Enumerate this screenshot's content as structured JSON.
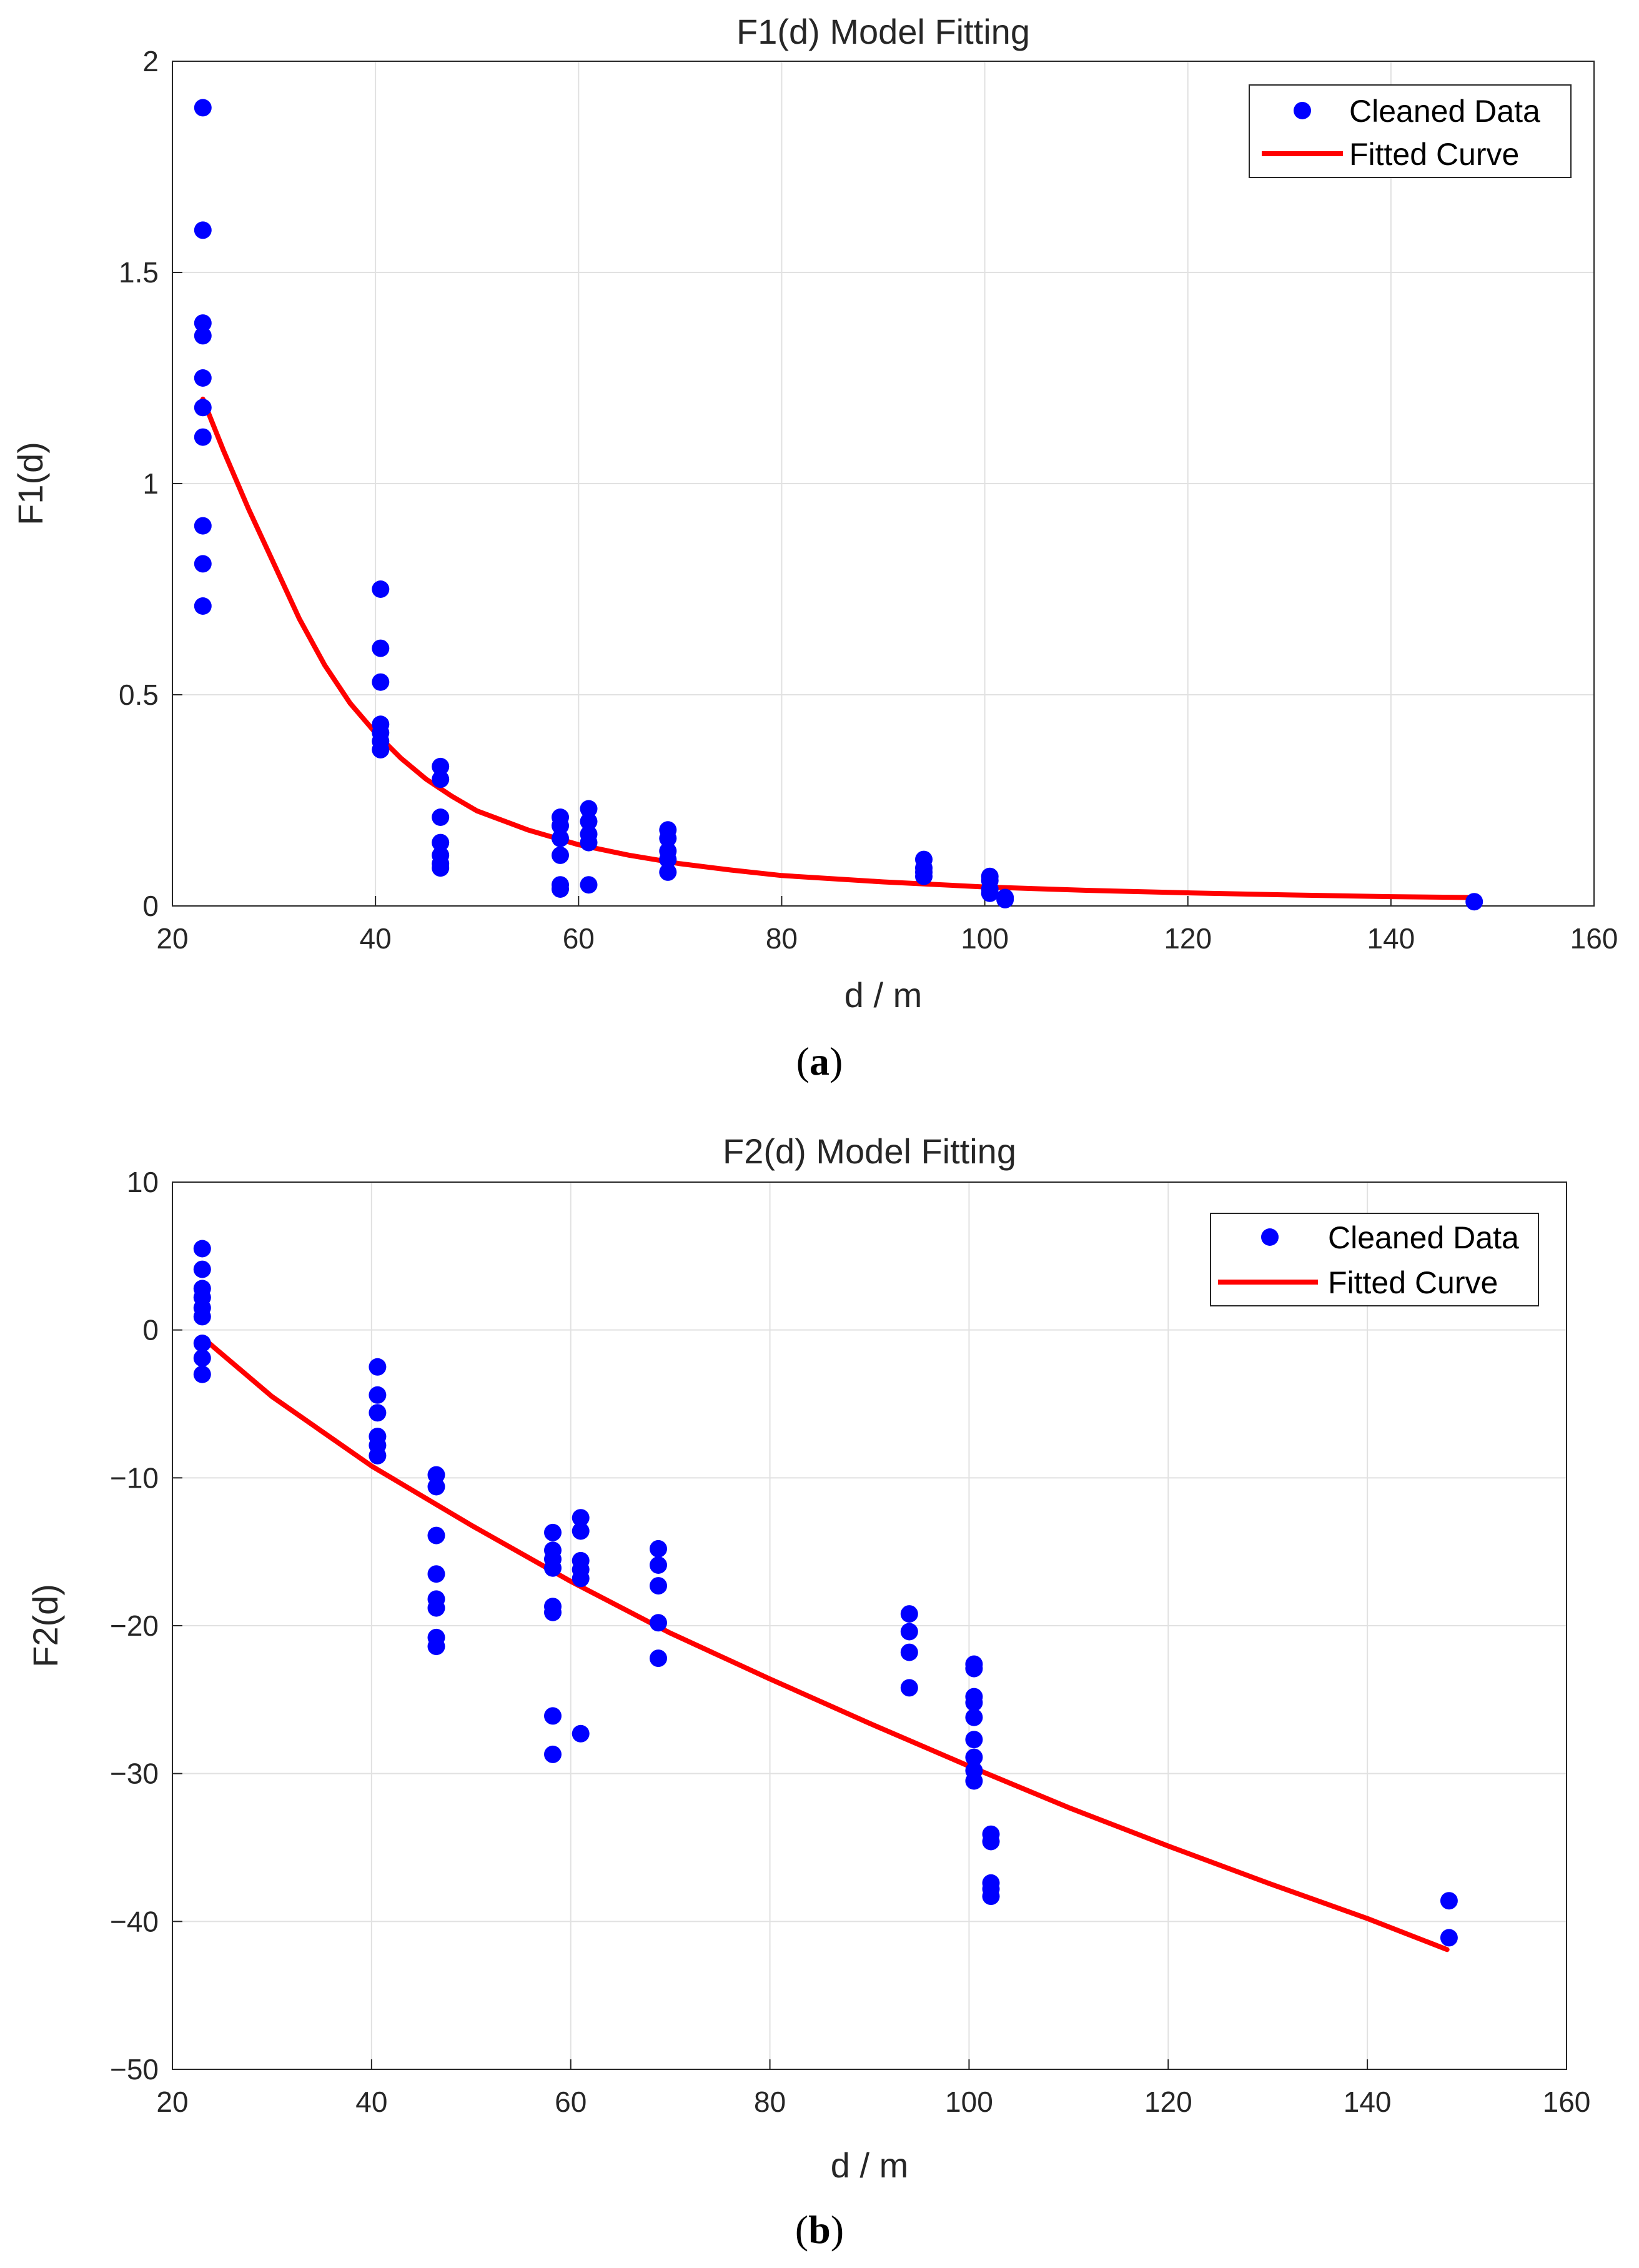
{
  "chart_data": [
    {
      "type": "scatter",
      "title": "F1(d) Model Fitting",
      "xlabel": "d / m",
      "ylabel": "F1(d)",
      "caption_prefix": "(",
      "caption_letter": "a",
      "caption_suffix": ")",
      "xlim": [
        20,
        160
      ],
      "ylim": [
        0,
        2
      ],
      "xticks": [
        20,
        40,
        60,
        80,
        100,
        120,
        140,
        160
      ],
      "yticks": [
        0,
        0.5,
        1,
        1.5,
        2
      ],
      "ytick_labels": [
        "0",
        "0.5",
        "1",
        "1.5",
        "2"
      ],
      "grid": true,
      "legend_position": "top-right",
      "colors": {
        "points": "#0000ff",
        "curve": "#ff0000"
      },
      "series": [
        {
          "name": "Cleaned Data",
          "kind": "scatter",
          "points": [
            [
              23,
              1.89
            ],
            [
              23,
              1.6
            ],
            [
              23,
              1.38
            ],
            [
              23,
              1.35
            ],
            [
              23,
              1.25
            ],
            [
              23,
              1.18
            ],
            [
              23,
              1.11
            ],
            [
              23,
              0.9
            ],
            [
              23,
              0.81
            ],
            [
              23,
              0.71
            ],
            [
              40.5,
              0.75
            ],
            [
              40.5,
              0.61
            ],
            [
              40.5,
              0.53
            ],
            [
              40.5,
              0.43
            ],
            [
              40.5,
              0.41
            ],
            [
              40.5,
              0.39
            ],
            [
              40.5,
              0.37
            ],
            [
              46.4,
              0.33
            ],
            [
              46.4,
              0.3
            ],
            [
              46.4,
              0.21
            ],
            [
              46.4,
              0.15
            ],
            [
              46.4,
              0.12
            ],
            [
              46.4,
              0.1
            ],
            [
              46.4,
              0.09
            ],
            [
              58.2,
              0.21
            ],
            [
              58.2,
              0.19
            ],
            [
              58.2,
              0.16
            ],
            [
              58.2,
              0.12
            ],
            [
              58.2,
              0.05
            ],
            [
              58.2,
              0.04
            ],
            [
              61,
              0.23
            ],
            [
              61,
              0.2
            ],
            [
              61,
              0.17
            ],
            [
              61,
              0.15
            ],
            [
              61,
              0.05
            ],
            [
              68.8,
              0.18
            ],
            [
              68.8,
              0.16
            ],
            [
              68.8,
              0.13
            ],
            [
              68.8,
              0.11
            ],
            [
              68.8,
              0.08
            ],
            [
              94,
              0.11
            ],
            [
              94,
              0.09
            ],
            [
              94,
              0.08
            ],
            [
              94,
              0.07
            ],
            [
              100.5,
              0.07
            ],
            [
              100.5,
              0.06
            ],
            [
              100.5,
              0.04
            ],
            [
              100.5,
              0.03
            ],
            [
              102,
              0.02
            ],
            [
              102,
              0.015
            ],
            [
              148.2,
              0.01
            ]
          ]
        },
        {
          "name": "Fitted Curve",
          "kind": "line",
          "points": [
            [
              23,
              1.2
            ],
            [
              25,
              1.08
            ],
            [
              27.5,
              0.94
            ],
            [
              30,
              0.81
            ],
            [
              32.5,
              0.68
            ],
            [
              35,
              0.57
            ],
            [
              37.5,
              0.48
            ],
            [
              40,
              0.41
            ],
            [
              42.5,
              0.35
            ],
            [
              45,
              0.3
            ],
            [
              47.5,
              0.26
            ],
            [
              50,
              0.225
            ],
            [
              55,
              0.18
            ],
            [
              60,
              0.145
            ],
            [
              65,
              0.12
            ],
            [
              70,
              0.1
            ],
            [
              75,
              0.085
            ],
            [
              80,
              0.072
            ],
            [
              90,
              0.057
            ],
            [
              100,
              0.045
            ],
            [
              110,
              0.037
            ],
            [
              120,
              0.031
            ],
            [
              130,
              0.026
            ],
            [
              140,
              0.022
            ],
            [
              148,
              0.02
            ]
          ]
        }
      ]
    },
    {
      "type": "scatter",
      "title": "F2(d) Model Fitting",
      "xlabel": "d / m",
      "ylabel": "F2(d)",
      "caption_prefix": "(",
      "caption_letter": "b",
      "caption_suffix": ")",
      "xlim": [
        20,
        160
      ],
      "ylim": [
        -50,
        10
      ],
      "xticks": [
        20,
        40,
        60,
        80,
        100,
        120,
        140,
        160
      ],
      "yticks": [
        -50,
        -40,
        -30,
        -20,
        -10,
        0,
        10
      ],
      "ytick_labels": [
        "−50",
        "−40",
        "−30",
        "−20",
        "−10",
        "0",
        "10"
      ],
      "grid": true,
      "legend_position": "top-right",
      "colors": {
        "points": "#0000ff",
        "curve": "#ff0000"
      },
      "series": [
        {
          "name": "Cleaned Data",
          "kind": "scatter",
          "points": [
            [
              23,
              5.5
            ],
            [
              23,
              4.1
            ],
            [
              23,
              2.8
            ],
            [
              23,
              2.2
            ],
            [
              23,
              1.5
            ],
            [
              23,
              0.9
            ],
            [
              23,
              -0.9
            ],
            [
              23,
              -1.9
            ],
            [
              23,
              -3.0
            ],
            [
              40.6,
              -2.5
            ],
            [
              40.6,
              -4.4
            ],
            [
              40.6,
              -5.6
            ],
            [
              40.6,
              -7.2
            ],
            [
              40.6,
              -7.8
            ],
            [
              40.6,
              -8.5
            ],
            [
              46.5,
              -9.8
            ],
            [
              46.5,
              -10.6
            ],
            [
              46.5,
              -13.9
            ],
            [
              46.5,
              -16.5
            ],
            [
              46.5,
              -18.2
            ],
            [
              46.5,
              -18.8
            ],
            [
              46.5,
              -20.8
            ],
            [
              46.5,
              -21.4
            ],
            [
              58.2,
              -13.7
            ],
            [
              58.2,
              -14.9
            ],
            [
              58.2,
              -15.5
            ],
            [
              58.2,
              -16.1
            ],
            [
              58.2,
              -18.7
            ],
            [
              58.2,
              -19.1
            ],
            [
              58.2,
              -26.1
            ],
            [
              58.2,
              -28.7
            ],
            [
              61,
              -12.7
            ],
            [
              61,
              -13.6
            ],
            [
              61,
              -15.6
            ],
            [
              61,
              -16.2
            ],
            [
              61,
              -16.8
            ],
            [
              61,
              -27.3
            ],
            [
              68.8,
              -14.8
            ],
            [
              68.8,
              -15.9
            ],
            [
              68.8,
              -17.3
            ],
            [
              68.8,
              -19.8
            ],
            [
              68.8,
              -22.2
            ],
            [
              94,
              -19.2
            ],
            [
              94,
              -20.4
            ],
            [
              94,
              -21.8
            ],
            [
              94,
              -24.2
            ],
            [
              100.5,
              -22.6
            ],
            [
              100.5,
              -22.9
            ],
            [
              100.5,
              -24.8
            ],
            [
              100.5,
              -25.2
            ],
            [
              100.5,
              -26.2
            ],
            [
              100.5,
              -27.7
            ],
            [
              100.5,
              -28.9
            ],
            [
              100.5,
              -29.8
            ],
            [
              100.5,
              -30.5
            ],
            [
              102.2,
              -34.1
            ],
            [
              102.2,
              -34.6
            ],
            [
              102.2,
              -37.4
            ],
            [
              102.2,
              -37.8
            ],
            [
              102.2,
              -38.3
            ],
            [
              148.2,
              -38.6
            ],
            [
              148.2,
              -41.1
            ]
          ]
        },
        {
          "name": "Fitted Curve",
          "kind": "line",
          "points": [
            [
              23,
              -0.5
            ],
            [
              30,
              -4.5
            ],
            [
              40,
              -9.2
            ],
            [
              50,
              -13.2
            ],
            [
              60,
              -17.0
            ],
            [
              70,
              -20.5
            ],
            [
              80,
              -23.6
            ],
            [
              90,
              -26.6
            ],
            [
              100,
              -29.5
            ],
            [
              110,
              -32.3
            ],
            [
              120,
              -34.9
            ],
            [
              130,
              -37.4
            ],
            [
              140,
              -39.8
            ],
            [
              148,
              -41.9
            ]
          ]
        }
      ]
    }
  ]
}
